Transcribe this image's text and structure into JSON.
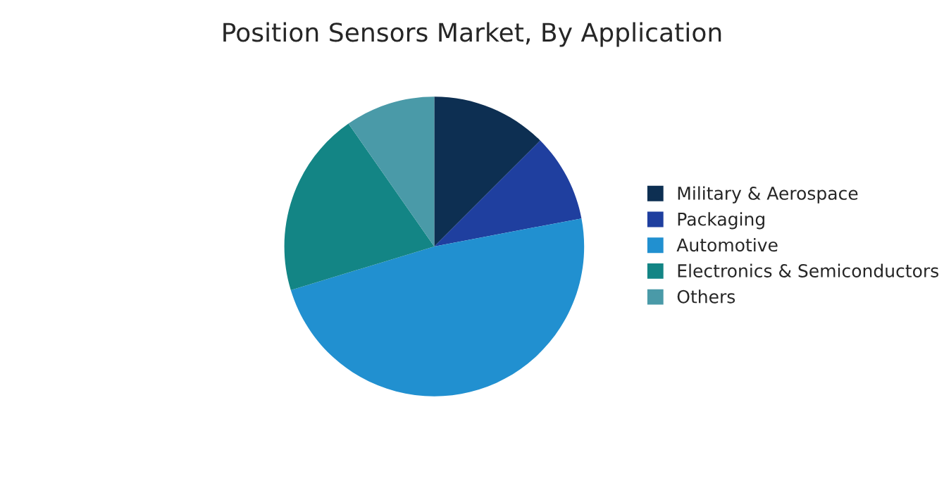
{
  "chart_data": {
    "type": "pie",
    "title": "Position Sensors Market, By Application",
    "categories": [
      "Military & Aerospace",
      "Packaging",
      "Automotive",
      "Electronics & Semiconductors",
      "Others"
    ],
    "values": [
      12.5,
      9.5,
      48.3,
      20,
      9.7
    ],
    "colors": [
      "#0d2f52",
      "#1f3f9f",
      "#2190d0",
      "#138585",
      "#4a9aa8"
    ],
    "legend": "right"
  }
}
